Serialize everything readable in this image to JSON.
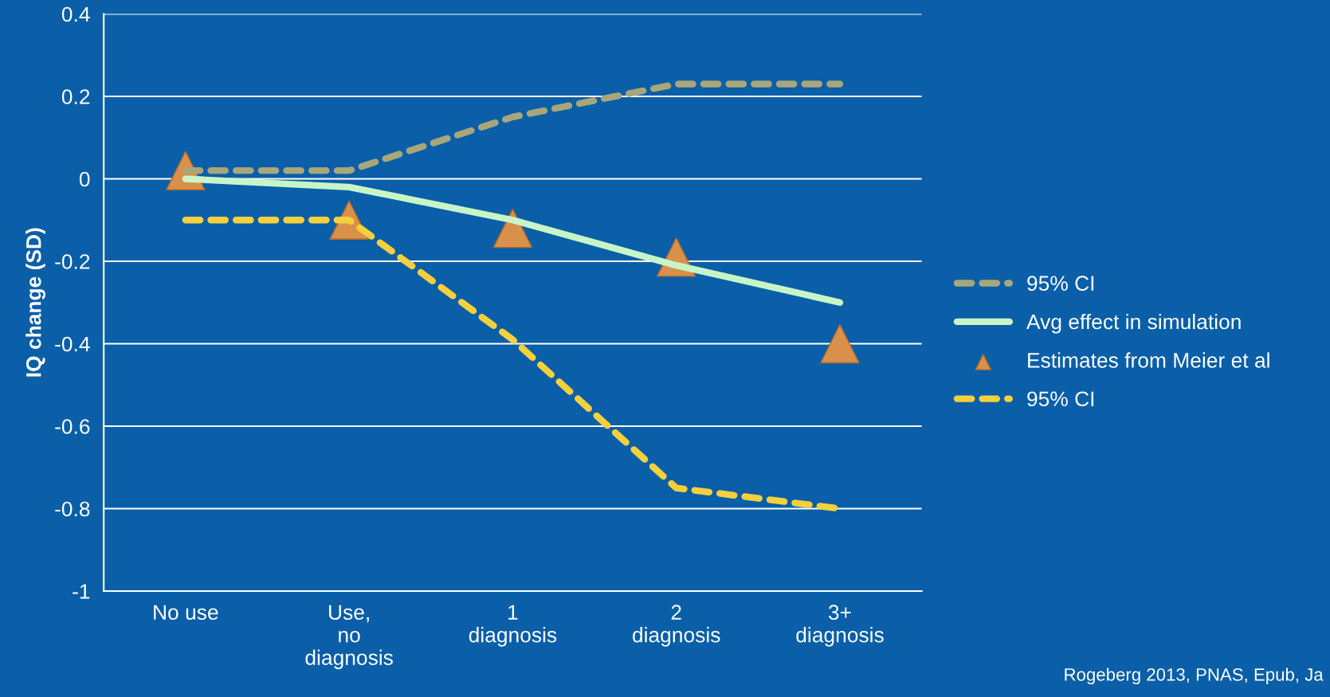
{
  "chart_data": {
    "type": "line",
    "ylabel": "IQ change (SD)",
    "categories": [
      "No use",
      "Use,\nno\ndiagnosis",
      "1\ndiagnosis",
      "2\ndiagnosis",
      "3+\ndiagnosis"
    ],
    "series": [
      {
        "name": "95% CI",
        "color": "#a9a67a",
        "line_style": "dashed",
        "marker": "none",
        "values": [
          0.02,
          0.02,
          0.15,
          0.23,
          0.23
        ]
      },
      {
        "name": "Avg effect in simulation",
        "color": "#c8f5c8",
        "line_style": "solid",
        "marker": "none",
        "values": [
          0.0,
          -0.02,
          -0.1,
          -0.21,
          -0.3
        ]
      },
      {
        "name": "Estimates from Meier et al",
        "type": "scatter",
        "color": "#d9904a",
        "marker": "triangle",
        "values": [
          0.02,
          -0.1,
          -0.12,
          -0.19,
          -0.4
        ]
      },
      {
        "name": "95% CI",
        "color": "#f5d03c",
        "line_style": "dashed",
        "marker": "none",
        "values": [
          -0.1,
          -0.1,
          -0.39,
          -0.75,
          -0.8
        ]
      }
    ],
    "ylim": [
      -1,
      0.4
    ],
    "yticks": [
      0.4,
      0.2,
      0,
      -0.2,
      -0.4,
      -0.6,
      -0.8,
      -1
    ],
    "grid": "y",
    "legend": "right",
    "annotations": [
      "Rogeberg 2013, PNAS, Epub, Ja"
    ]
  }
}
